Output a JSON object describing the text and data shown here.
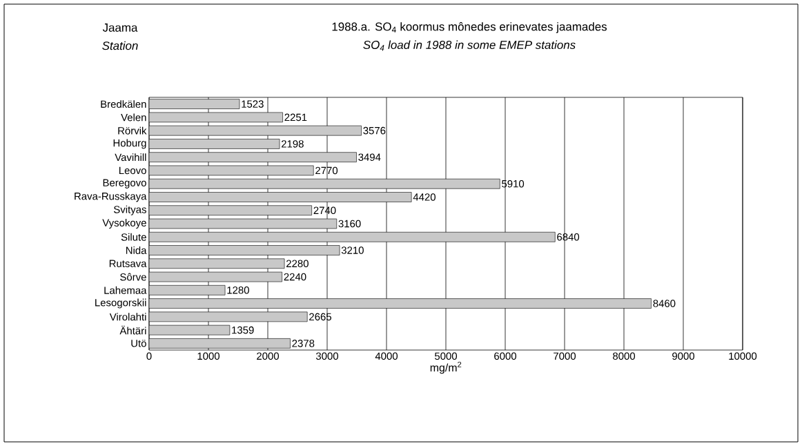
{
  "chart_data": {
    "type": "bar",
    "orientation": "horizontal",
    "title": "1988.a. SO$_{4}$ koormus mônedes erinevates jaamades",
    "subtitle": "SO$_{4}$ load in 1988 in some EMEP stations",
    "annotations": [
      "Jaama",
      "Station"
    ],
    "xlabel": "mg/m$^{2}$",
    "categories": [
      "Bredkälen",
      "Velen",
      "Rörvik",
      "Hoburg",
      "Vavihill",
      "Leovo",
      "Beregovo",
      "Rava-Russkaya",
      "Svityas",
      "Vysokoye",
      "Silute",
      "Nida",
      "Rutsava",
      "Sôrve",
      "Lahemaa",
      "Lesogorskii",
      "Virolahti",
      "Ähtäri",
      "Utö"
    ],
    "values": [
      1523,
      2251,
      3576,
      2198,
      3494,
      2770,
      5910,
      4420,
      2740,
      3160,
      6840,
      3210,
      2280,
      2240,
      1280,
      8460,
      2665,
      1359,
      2378
    ],
    "color": "#c8c8c8",
    "xlim": [
      0,
      10000
    ],
    "xticks": [
      0,
      1000,
      2000,
      3000,
      4000,
      5000,
      6000,
      7000,
      8000,
      9000,
      10000
    ],
    "grid": "x",
    "data_labels": true
  }
}
